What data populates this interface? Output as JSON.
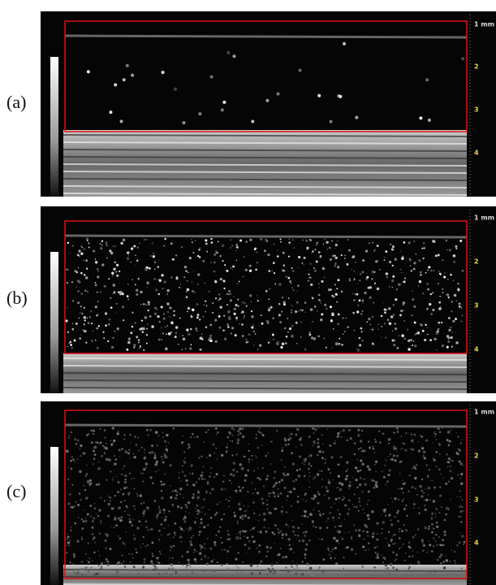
{
  "panels": [
    {
      "label": "(a)",
      "depth_labels": [
        "1 mm",
        "2",
        "3",
        "4"
      ]
    },
    {
      "label": "(b)",
      "depth_labels": [
        "1 mm",
        "2",
        "3",
        "4"
      ]
    },
    {
      "label": "(c)",
      "depth_labels": [
        "1 mm",
        "2",
        "3",
        "4"
      ]
    }
  ]
}
